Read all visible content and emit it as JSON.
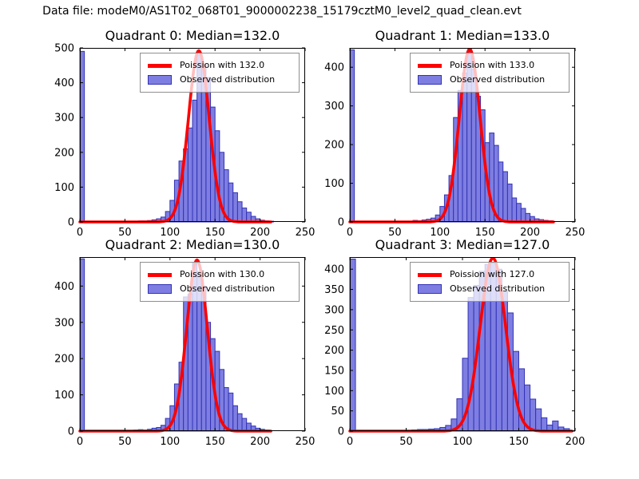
{
  "suptitle": "Data file: modeM0/AS1T02_068T01_9000002238_15179cztM0_level2_quad_clean.evt",
  "colors": {
    "bar_fill": "#7e7ee2",
    "bar_edge": "#3232b4",
    "curve": "#ff0000",
    "axes": "#000000",
    "legend_border": "#8f8f8f"
  },
  "chart_data": [
    {
      "type": "bar",
      "title": "Quadrant 0: Median=132.0",
      "median": 132.0,
      "legend": [
        "Poission with 132.0",
        "Observed distribution"
      ],
      "legend_position": "upper right",
      "grid": false,
      "xlim": [
        0,
        250
      ],
      "ylim": [
        0,
        500
      ],
      "xticks": [
        0,
        50,
        100,
        150,
        200,
        250
      ],
      "yticks": [
        0,
        100,
        200,
        300,
        400,
        500
      ],
      "bin_width": 5,
      "bars": [
        [
          0,
          490
        ],
        [
          60,
          2
        ],
        [
          65,
          3
        ],
        [
          70,
          3
        ],
        [
          75,
          4
        ],
        [
          80,
          6
        ],
        [
          85,
          9
        ],
        [
          90,
          14
        ],
        [
          95,
          30
        ],
        [
          100,
          62
        ],
        [
          105,
          120
        ],
        [
          110,
          175
        ],
        [
          115,
          210
        ],
        [
          120,
          270
        ],
        [
          125,
          350
        ],
        [
          130,
          480
        ],
        [
          135,
          452
        ],
        [
          140,
          415
        ],
        [
          145,
          330
        ],
        [
          150,
          262
        ],
        [
          155,
          200
        ],
        [
          160,
          150
        ],
        [
          165,
          112
        ],
        [
          170,
          84
        ],
        [
          175,
          58
        ],
        [
          180,
          40
        ],
        [
          185,
          28
        ],
        [
          190,
          16
        ],
        [
          195,
          9
        ],
        [
          200,
          5
        ],
        [
          205,
          3
        ],
        [
          210,
          2
        ]
      ],
      "poisson_curve": {
        "lambda": 132.0,
        "amplitude": 492,
        "x_end": 212
      }
    },
    {
      "type": "bar",
      "title": "Quadrant 1: Median=133.0",
      "median": 133.0,
      "legend": [
        "Poission with 133.0",
        "Observed distribution"
      ],
      "legend_position": "upper right",
      "grid": false,
      "xlim": [
        0,
        250
      ],
      "ylim": [
        0,
        450
      ],
      "xticks": [
        0,
        50,
        100,
        150,
        200,
        250
      ],
      "yticks": [
        0,
        100,
        200,
        300,
        400
      ],
      "bin_width": 5,
      "bars": [
        [
          0,
          445
        ],
        [
          70,
          4
        ],
        [
          75,
          3
        ],
        [
          80,
          5
        ],
        [
          85,
          7
        ],
        [
          90,
          10
        ],
        [
          95,
          18
        ],
        [
          100,
          40
        ],
        [
          105,
          70
        ],
        [
          110,
          120
        ],
        [
          115,
          270
        ],
        [
          120,
          340
        ],
        [
          125,
          385
        ],
        [
          130,
          440
        ],
        [
          135,
          395
        ],
        [
          140,
          325
        ],
        [
          145,
          290
        ],
        [
          150,
          205
        ],
        [
          155,
          230
        ],
        [
          160,
          198
        ],
        [
          165,
          155
        ],
        [
          170,
          130
        ],
        [
          175,
          98
        ],
        [
          180,
          62
        ],
        [
          185,
          48
        ],
        [
          190,
          35
        ],
        [
          195,
          22
        ],
        [
          200,
          14
        ],
        [
          205,
          8
        ],
        [
          210,
          6
        ],
        [
          215,
          4
        ],
        [
          220,
          3
        ]
      ],
      "poisson_curve": {
        "lambda": 133.0,
        "amplitude": 447,
        "x_end": 226
      }
    },
    {
      "type": "bar",
      "title": "Quadrant 2: Median=130.0",
      "median": 130.0,
      "legend": [
        "Poission with 130.0",
        "Observed distribution"
      ],
      "legend_position": "upper right",
      "grid": false,
      "xlim": [
        0,
        250
      ],
      "ylim": [
        0,
        480
      ],
      "xticks": [
        0,
        50,
        100,
        150,
        200,
        250
      ],
      "yticks": [
        0,
        100,
        200,
        300,
        400
      ],
      "bin_width": 5,
      "bars": [
        [
          0,
          475
        ],
        [
          60,
          3
        ],
        [
          65,
          4
        ],
        [
          70,
          3
        ],
        [
          75,
          5
        ],
        [
          80,
          8
        ],
        [
          85,
          10
        ],
        [
          90,
          16
        ],
        [
          95,
          35
        ],
        [
          100,
          70
        ],
        [
          105,
          130
        ],
        [
          110,
          190
        ],
        [
          115,
          370
        ],
        [
          120,
          378
        ],
        [
          125,
          465
        ],
        [
          130,
          440
        ],
        [
          135,
          400
        ],
        [
          140,
          300
        ],
        [
          145,
          255
        ],
        [
          150,
          220
        ],
        [
          155,
          170
        ],
        [
          160,
          120
        ],
        [
          165,
          105
        ],
        [
          170,
          70
        ],
        [
          175,
          48
        ],
        [
          180,
          35
        ],
        [
          185,
          22
        ],
        [
          190,
          14
        ],
        [
          195,
          8
        ],
        [
          200,
          5
        ],
        [
          205,
          3
        ]
      ],
      "poisson_curve": {
        "lambda": 130.0,
        "amplitude": 472,
        "x_end": 212
      }
    },
    {
      "type": "bar",
      "title": "Quadrant 3: Median=127.0",
      "median": 127.0,
      "legend": [
        "Poission with 127.0",
        "Observed distribution"
      ],
      "legend_position": "upper right",
      "grid": false,
      "xlim": [
        0,
        200
      ],
      "ylim": [
        0,
        430
      ],
      "xticks": [
        0,
        50,
        100,
        150,
        200
      ],
      "yticks": [
        0,
        50,
        100,
        150,
        200,
        250,
        300,
        350,
        400
      ],
      "bin_width": 5,
      "bars": [
        [
          0,
          425
        ],
        [
          55,
          3
        ],
        [
          60,
          4
        ],
        [
          65,
          4
        ],
        [
          70,
          5
        ],
        [
          75,
          6
        ],
        [
          80,
          9
        ],
        [
          85,
          14
        ],
        [
          90,
          30
        ],
        [
          95,
          80
        ],
        [
          100,
          180
        ],
        [
          105,
          330
        ],
        [
          110,
          360
        ],
        [
          115,
          395
        ],
        [
          120,
          412
        ],
        [
          125,
          415
        ],
        [
          130,
          400
        ],
        [
          135,
          345
        ],
        [
          140,
          292
        ],
        [
          145,
          197
        ],
        [
          150,
          154
        ],
        [
          155,
          114
        ],
        [
          160,
          79
        ],
        [
          165,
          55
        ],
        [
          170,
          33
        ],
        [
          175,
          15
        ],
        [
          180,
          25
        ],
        [
          185,
          10
        ],
        [
          190,
          6
        ]
      ],
      "poisson_curve": {
        "lambda": 127.0,
        "amplitude": 428,
        "x_end": 197
      }
    }
  ]
}
